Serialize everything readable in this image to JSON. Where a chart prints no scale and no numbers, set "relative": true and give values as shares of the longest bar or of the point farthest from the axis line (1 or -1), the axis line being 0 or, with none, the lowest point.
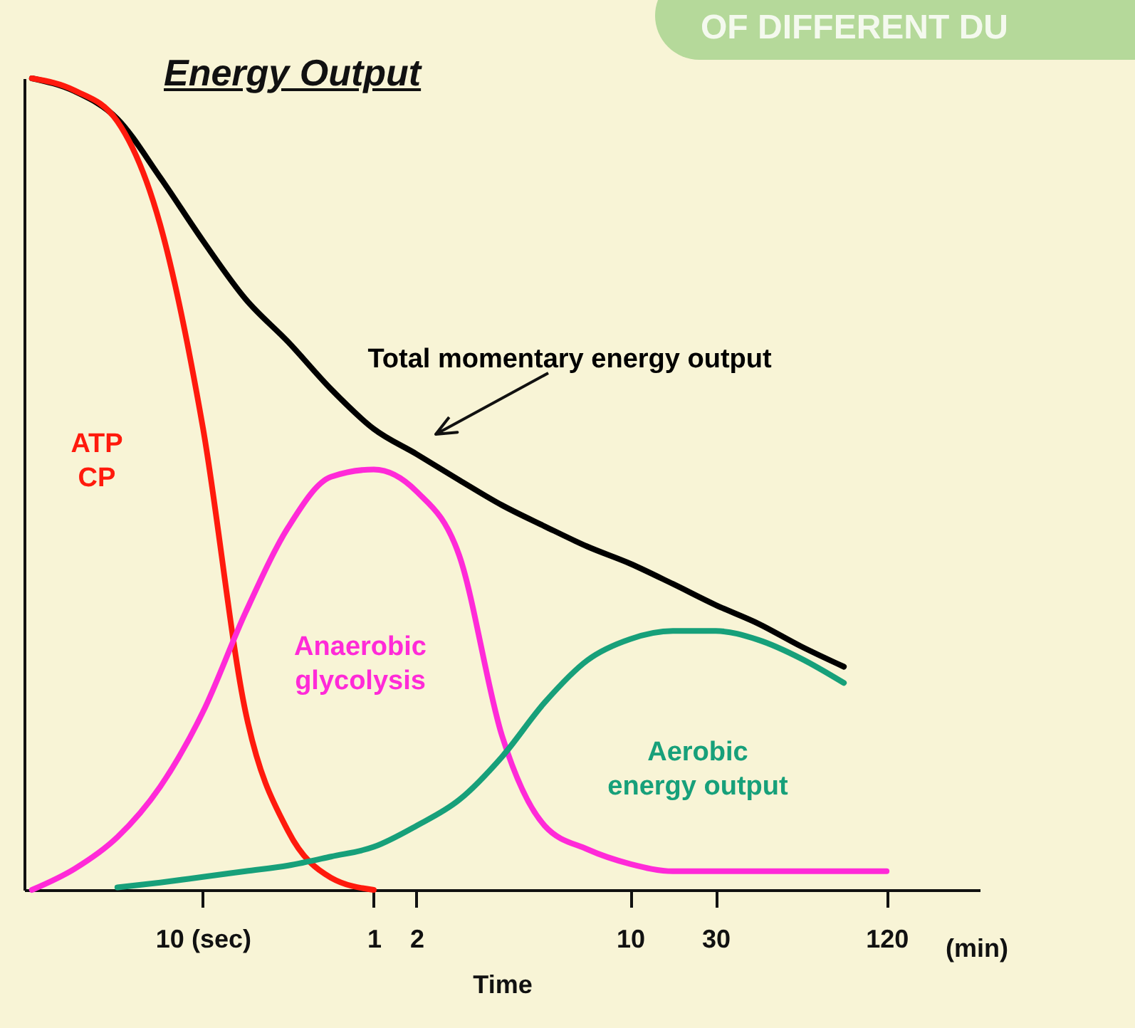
{
  "chart_data": {
    "type": "line",
    "title": "Energy Output",
    "xlabel": "Time",
    "relative": true,
    "legend": false,
    "grid": false,
    "marker": "none",
    "line_style": "solid",
    "annotations": [
      "(min)",
      "OF DIFFERENT DU"
    ],
    "categories": [
      null,
      null,
      null,
      null,
      "10 (sec)",
      null,
      null,
      null,
      "1",
      "2",
      null,
      null,
      null,
      null,
      "10",
      null,
      "30",
      null,
      null,
      null,
      "120",
      null,
      null
    ],
    "series": [
      {
        "name": "Total momentary energy output",
        "color": "#000000",
        "values": [
          1.0,
          0.984,
          0.95,
          0.878,
          0.8,
          0.728,
          0.675,
          0.617,
          0.568,
          0.537,
          0.505,
          0.474,
          0.448,
          0.423,
          0.402,
          0.377,
          0.351,
          0.328,
          0.3,
          0.275,
          null,
          null,
          null
        ]
      },
      {
        "name": "ATP CP",
        "color": "#ff1a0d",
        "values": [
          1.0,
          0.985,
          0.947,
          0.82,
          0.57,
          0.219,
          0.072,
          0.015,
          0.0,
          null,
          null,
          null,
          null,
          null,
          null,
          null,
          null,
          null,
          null,
          null,
          null,
          null,
          null
        ]
      },
      {
        "name": "Anaerobic glycolysis",
        "color": "#ff2ad8",
        "values": [
          0.0,
          0.026,
          0.065,
          0.127,
          0.219,
          0.342,
          0.447,
          0.509,
          0.518,
          0.491,
          0.412,
          0.19,
          0.079,
          0.05,
          0.032,
          0.023,
          0.023,
          0.023,
          0.023,
          0.023,
          0.023,
          null,
          null
        ]
      },
      {
        "name": "Aerobic energy output",
        "color": "#17a07a",
        "values": [
          null,
          null,
          0.003,
          0.009,
          0.016,
          0.023,
          0.03,
          0.041,
          0.053,
          0.079,
          0.111,
          0.164,
          0.231,
          0.283,
          0.309,
          0.319,
          0.319,
          0.308,
          0.285,
          0.255,
          null,
          null,
          null
        ]
      }
    ]
  }
}
